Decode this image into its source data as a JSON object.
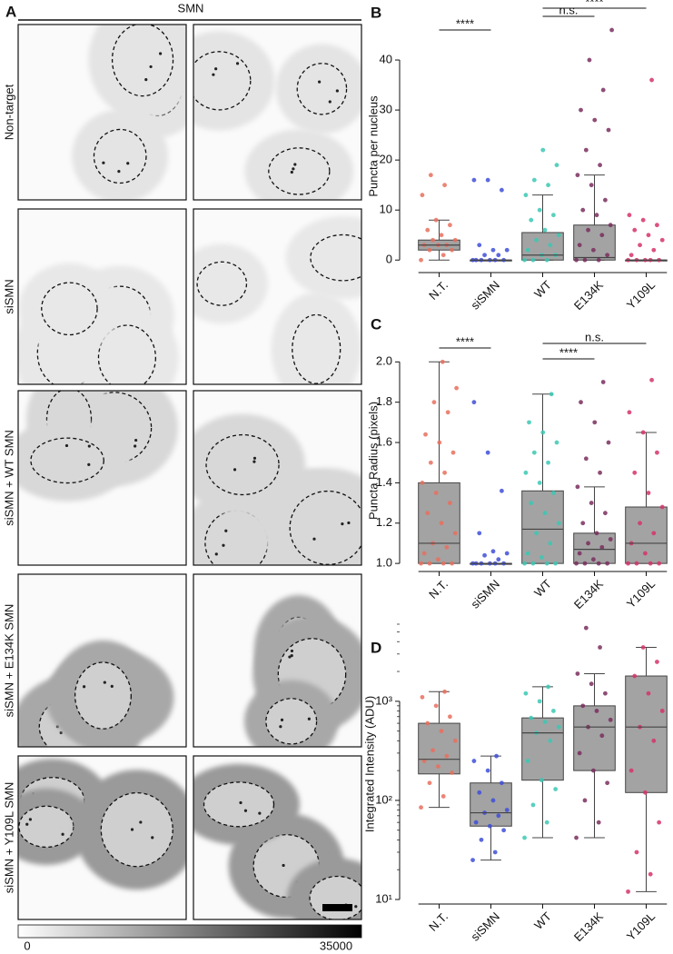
{
  "panel_a": {
    "label": "A",
    "title": "SMN",
    "rows": [
      "Non-target",
      "siSMN",
      "siSMN + WT SMN",
      "siSMN + E134K SMN",
      "siSMN + Y109L SMN"
    ],
    "colorbar": {
      "min": 0,
      "max": 35000
    }
  },
  "chart_data": [
    {
      "type": "box",
      "panel": "B",
      "ylabel": "Puncta per nucleus",
      "categories": [
        "N.T.",
        "siSMN",
        "WT",
        "E134K",
        "Y109L"
      ],
      "colors": [
        "#e8705e",
        "#3f4fd8",
        "#3cc8b4",
        "#7a2e5e",
        "#d6336c"
      ],
      "box_color": "#a3a3a3",
      "ylim": [
        -2.5,
        48
      ],
      "yticks": [
        0,
        10,
        20,
        30,
        40
      ],
      "log": false,
      "boxes": [
        {
          "min": 0,
          "q1": 2,
          "median": 3,
          "q3": 4,
          "max": 8
        },
        {
          "min": 0,
          "q1": 0,
          "median": 0,
          "q3": 0,
          "max": 0
        },
        {
          "min": 0,
          "q1": 0,
          "median": 1,
          "q3": 5.5,
          "max": 13
        },
        {
          "min": 0,
          "q1": 0,
          "median": 0.5,
          "q3": 7,
          "max": 17
        },
        {
          "min": 0,
          "q1": 0,
          "median": 0,
          "q3": 0,
          "max": 0
        }
      ],
      "points": [
        [
          0,
          1,
          2,
          2,
          3,
          3,
          3,
          4,
          4,
          5,
          6,
          7,
          8,
          13,
          15,
          17
        ],
        [
          0,
          0,
          0,
          0,
          0,
          0,
          1,
          1,
          2,
          2,
          3,
          14,
          16,
          16
        ],
        [
          0,
          0,
          0,
          1,
          1,
          2,
          3,
          4,
          5,
          6,
          8,
          9,
          10,
          13,
          15,
          16,
          19,
          22
        ],
        [
          0,
          0,
          0,
          1,
          2,
          3,
          5,
          6,
          7,
          9,
          10,
          12,
          15,
          17,
          19,
          22,
          26,
          28,
          30,
          34,
          40,
          46
        ],
        [
          0,
          0,
          0,
          0,
          0,
          1,
          2,
          3,
          4,
          5,
          6,
          7,
          8,
          9,
          36
        ]
      ],
      "annotations": [
        {
          "text": "****",
          "between": [
            "N.T.",
            "siSMN"
          ]
        },
        {
          "text": "n.s.",
          "between": [
            "WT",
            "E134K"
          ]
        },
        {
          "text": "****",
          "between": [
            "WT",
            "Y109L"
          ]
        }
      ]
    },
    {
      "type": "box",
      "panel": "C",
      "ylabel": "Puncta Radius (pixels)",
      "categories": [
        "N.T.",
        "siSMN",
        "WT",
        "E134K",
        "Y109L"
      ],
      "colors": [
        "#e8705e",
        "#3f4fd8",
        "#3cc8b4",
        "#7a2e5e",
        "#d6336c"
      ],
      "box_color": "#a3a3a3",
      "ylim": [
        0.96,
        2.06
      ],
      "yticks": [
        {
          "value": 1,
          "label": "1.0"
        },
        1.2,
        1.4,
        1.6,
        1.8,
        {
          "value": 2,
          "label": "2.0"
        }
      ],
      "log": false,
      "boxes": [
        {
          "min": 1,
          "q1": 1,
          "median": 1.1,
          "q3": 1.4,
          "max": 2
        },
        {
          "min": 1,
          "q1": 1,
          "median": 1,
          "q3": 1,
          "max": 1
        },
        {
          "min": 1,
          "q1": 1,
          "median": 1.17,
          "q3": 1.36,
          "max": 1.84
        },
        {
          "min": 1,
          "q1": 1,
          "median": 1.07,
          "q3": 1.15,
          "max": 1.38
        },
        {
          "min": 1,
          "q1": 1,
          "median": 1.1,
          "q3": 1.28,
          "max": 1.65
        }
      ],
      "points": [
        [
          1,
          1,
          1,
          1,
          1.02,
          1.05,
          1.08,
          1.1,
          1.15,
          1.2,
          1.25,
          1.3,
          1.35,
          1.4,
          1.45,
          1.5,
          1.55,
          1.6,
          1.64,
          1.75,
          1.8,
          1.87,
          2
        ],
        [
          1,
          1,
          1,
          1,
          1,
          1,
          1.02,
          1.04,
          1.05,
          1.06,
          1.15,
          1.36,
          1.55,
          1.8
        ],
        [
          1,
          1,
          1,
          1,
          1.03,
          1.05,
          1.1,
          1.15,
          1.2,
          1.25,
          1.3,
          1.35,
          1.4,
          1.45,
          1.5,
          1.55,
          1.6,
          1.65,
          1.7,
          1.84
        ],
        [
          1,
          1,
          1,
          1,
          1.02,
          1.05,
          1.08,
          1.1,
          1.12,
          1.15,
          1.2,
          1.25,
          1.3,
          1.38,
          1.45,
          1.52,
          1.6,
          1.7,
          1.8,
          1.9
        ],
        [
          1,
          1,
          1,
          1,
          1.05,
          1.1,
          1.15,
          1.2,
          1.28,
          1.35,
          1.45,
          1.55,
          1.65,
          1.75,
          1.91
        ]
      ],
      "annotations": [
        {
          "text": "****",
          "between": [
            "N.T.",
            "siSMN"
          ]
        },
        {
          "text": "n.s.",
          "between": [
            "WT",
            "Y109L"
          ]
        },
        {
          "text": "****",
          "between": [
            "WT",
            "E134K"
          ]
        }
      ]
    },
    {
      "type": "box",
      "panel": "D",
      "ylabel": "Integrated Intensity (ADU)",
      "categories": [
        "N.T.",
        "siSMN",
        "WT",
        "E134K",
        "Y109L"
      ],
      "colors": [
        "#e8705e",
        "#3f4fd8",
        "#3cc8b4",
        "#7a2e5e",
        "#d6336c"
      ],
      "box_color": "#a3a3a3",
      "ylim": [
        9,
        6000
      ],
      "yticks": [
        {
          "value": 10,
          "label": "10¹"
        },
        {
          "value": 100,
          "label": "10²"
        },
        {
          "value": 1000,
          "label": "10³"
        }
      ],
      "log": true,
      "boxes": [
        {
          "min": 85,
          "q1": 185,
          "median": 260,
          "q3": 600,
          "max": 1250
        },
        {
          "min": 25,
          "q1": 55,
          "median": 75,
          "q3": 150,
          "max": 280
        },
        {
          "min": 42,
          "q1": 160,
          "median": 480,
          "q3": 680,
          "max": 1400
        },
        {
          "min": 42,
          "q1": 200,
          "median": 550,
          "q3": 900,
          "max": 1900
        },
        {
          "min": 12,
          "q1": 120,
          "median": 550,
          "q3": 1800,
          "max": 3500
        }
      ],
      "points": [
        [
          85,
          110,
          150,
          190,
          220,
          250,
          280,
          320,
          400,
          500,
          600,
          700,
          900,
          1100,
          1250
        ],
        [
          25,
          30,
          40,
          50,
          55,
          60,
          70,
          75,
          80,
          100,
          120,
          150,
          200,
          250,
          280
        ],
        [
          42,
          60,
          90,
          130,
          160,
          250,
          400,
          480,
          550,
          620,
          680,
          800,
          1000,
          1200,
          1400
        ],
        [
          42,
          60,
          100,
          150,
          200,
          300,
          450,
          550,
          650,
          800,
          900,
          1200,
          1500,
          1900,
          3500,
          5500
        ],
        [
          12,
          18,
          30,
          60,
          120,
          200,
          400,
          550,
          800,
          1200,
          1800,
          2500,
          3500
        ]
      ],
      "annotations": []
    }
  ]
}
